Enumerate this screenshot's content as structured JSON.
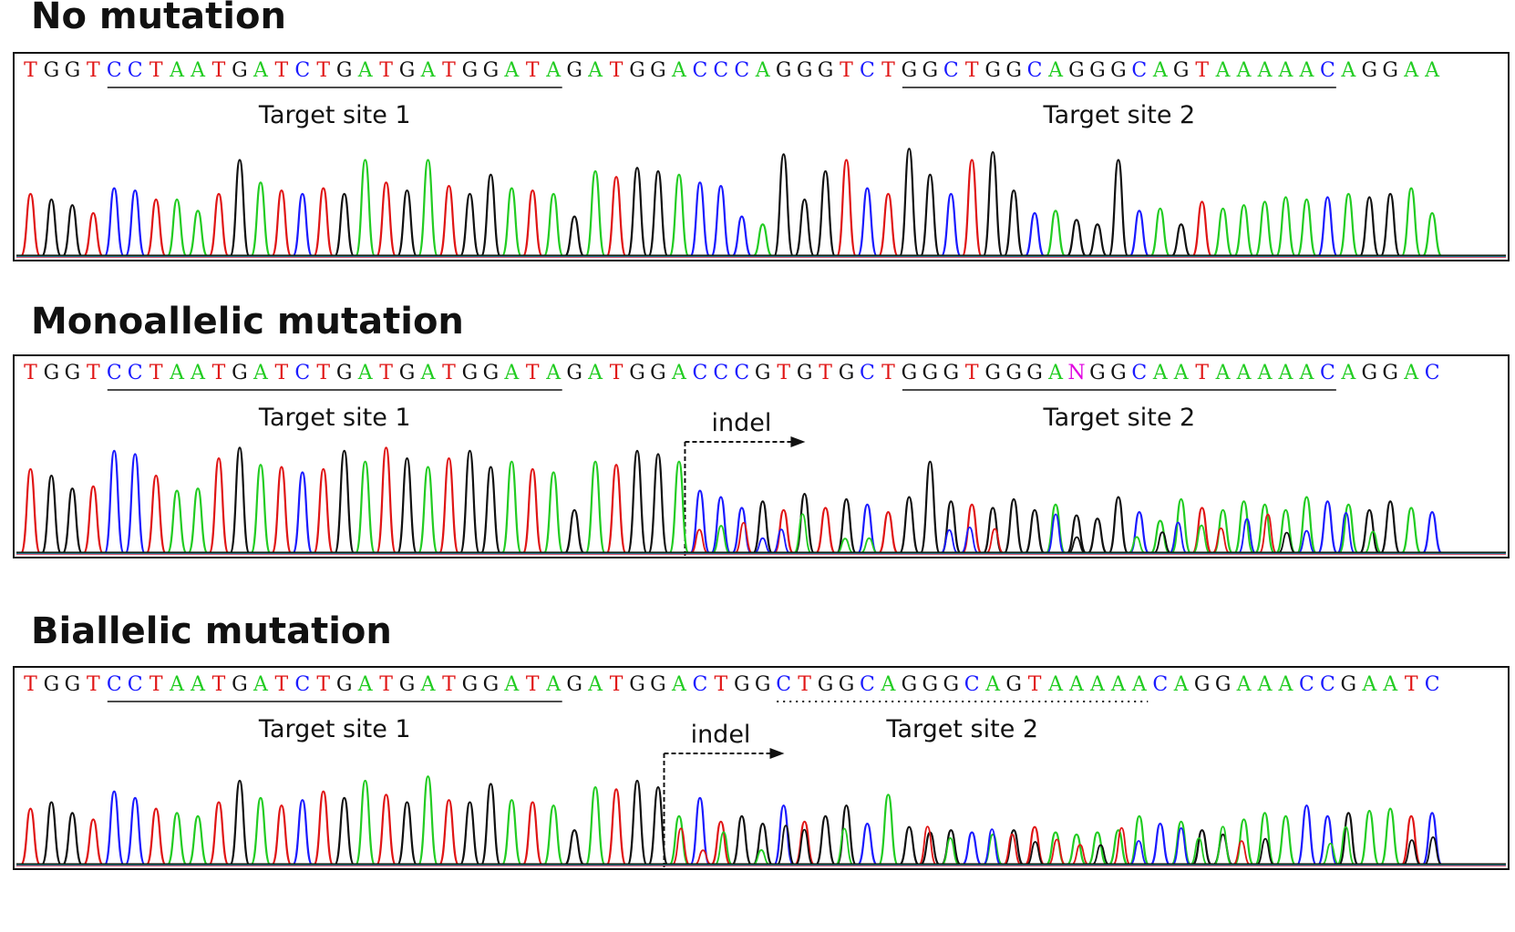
{
  "colors": {
    "A": "#22cc22",
    "C": "#1a1aff",
    "G": "#111111",
    "T": "#e01515",
    "N": "#e000e0"
  },
  "chart_data": [
    {
      "type": "chromatogram",
      "title": "No mutation",
      "sequence": "TGGTCCTAATGATCTGATGATGGATAGATGGACCCAGGGTCTGGCTGGCAGGGCAGTAAAAACAGGAA",
      "annotations": [
        {
          "label": "Target site 1",
          "start": 4,
          "end": 25,
          "style": "solid"
        },
        {
          "label": "Target site 2",
          "start": 42,
          "end": 62,
          "style": "solid"
        }
      ],
      "indel": null,
      "peak_heights": [
        0.55,
        0.5,
        0.45,
        0.38,
        0.6,
        0.58,
        0.5,
        0.5,
        0.4,
        0.55,
        0.85,
        0.65,
        0.58,
        0.55,
        0.6,
        0.55,
        0.85,
        0.65,
        0.58,
        0.85,
        0.62,
        0.55,
        0.72,
        0.6,
        0.58,
        0.55,
        0.35,
        0.75,
        0.7,
        0.78,
        0.75,
        0.72,
        0.65,
        0.62,
        0.35,
        0.28,
        0.9,
        0.5,
        0.75,
        0.85,
        0.6,
        0.55,
        0.95,
        0.72,
        0.55,
        0.85,
        0.92,
        0.58,
        0.38,
        0.4,
        0.32,
        0.28,
        0.85,
        0.4,
        0.42,
        0.28,
        0.48,
        0.42,
        0.45,
        0.48,
        0.52,
        0.5,
        0.52,
        0.55,
        0.52,
        0.55,
        0.6,
        0.38,
        0.62
      ]
    },
    {
      "type": "chromatogram",
      "title": "Monoallelic mutation",
      "sequence": "TGGTCCTAATGATCTGATGATGGATAGATGGACCCGTGTGCTGGGTGGGANGGCAATAAAAACAGGAC",
      "annotations": [
        {
          "label": "Target site 1",
          "start": 4,
          "end": 25,
          "style": "solid"
        },
        {
          "label": "Target site 2",
          "start": 42,
          "end": 62,
          "style": "solid"
        }
      ],
      "indel": {
        "label": "indel",
        "position": 31
      },
      "peak_heights": [
        0.78,
        0.72,
        0.6,
        0.62,
        0.95,
        0.92,
        0.72,
        0.58,
        0.6,
        0.88,
        0.98,
        0.82,
        0.8,
        0.75,
        0.78,
        0.95,
        0.85,
        0.98,
        0.88,
        0.8,
        0.88,
        0.95,
        0.8,
        0.85,
        0.78,
        0.75,
        0.4,
        0.85,
        0.82,
        0.95,
        0.92,
        0.85,
        0.58,
        0.52,
        0.42,
        0.48,
        0.4,
        0.55,
        0.42,
        0.5,
        0.45,
        0.38,
        0.52,
        0.85,
        0.48,
        0.45,
        0.42,
        0.5,
        0.4,
        0.45,
        0.35,
        0.32,
        0.52,
        0.38,
        0.3,
        0.5,
        0.42,
        0.4,
        0.48,
        0.45,
        0.4,
        0.52,
        0.48,
        0.45,
        0.4,
        0.48,
        0.42,
        0.38,
        0.45
      ]
    },
    {
      "type": "chromatogram",
      "title": "Biallelic mutation",
      "sequence": "TGGTCCTAATGATCTGATGATGGATAGATGGACTGGCTGGCAGGGCAGTAAAAACAGGAAACCGAATC",
      "annotations": [
        {
          "label": "Target site 1",
          "start": 4,
          "end": 25,
          "style": "solid"
        },
        {
          "label": "Target site 2",
          "start": 36,
          "end": 53,
          "style": "dotted"
        }
      ],
      "indel": {
        "label": "indel",
        "position": 30
      },
      "peak_heights": [
        0.52,
        0.58,
        0.48,
        0.42,
        0.68,
        0.62,
        0.52,
        0.48,
        0.45,
        0.58,
        0.78,
        0.62,
        0.55,
        0.6,
        0.68,
        0.62,
        0.78,
        0.65,
        0.58,
        0.82,
        0.6,
        0.58,
        0.75,
        0.6,
        0.58,
        0.55,
        0.32,
        0.72,
        0.7,
        0.78,
        0.72,
        0.45,
        0.62,
        0.4,
        0.45,
        0.38,
        0.55,
        0.4,
        0.45,
        0.55,
        0.38,
        0.65,
        0.35,
        0.3,
        0.32,
        0.3,
        0.28,
        0.32,
        0.35,
        0.3,
        0.28,
        0.3,
        0.32,
        0.45,
        0.38,
        0.4,
        0.32,
        0.28,
        0.42,
        0.48,
        0.45,
        0.55,
        0.45,
        0.48,
        0.5,
        0.52,
        0.45,
        0.48,
        0.5
      ]
    }
  ]
}
